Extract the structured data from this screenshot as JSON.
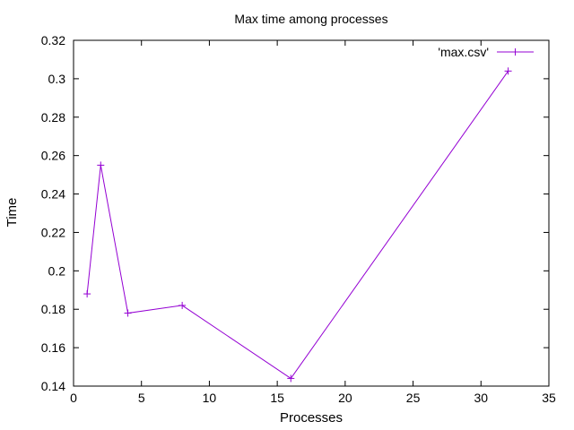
{
  "chart_data": {
    "type": "line",
    "title": "Max time among processes",
    "xlabel": "Processes",
    "ylabel": "Time",
    "xlim": [
      0,
      35
    ],
    "ylim": [
      0.14,
      0.32
    ],
    "xticks": [
      0,
      5,
      10,
      15,
      20,
      25,
      30,
      35
    ],
    "yticks": [
      0.14,
      0.16,
      0.18,
      0.2,
      0.22,
      0.24,
      0.26,
      0.28,
      0.3,
      0.32
    ],
    "ytick_labels": [
      "0.14",
      "0.16",
      "0.18",
      "0.2",
      "0.22",
      "0.24",
      "0.26",
      "0.28",
      "0.3",
      "0.32"
    ],
    "grid": false,
    "legend_position": "top-right",
    "series": [
      {
        "name": "'max.csv'",
        "color": "#9400d3",
        "marker": "plus",
        "x": [
          1,
          2,
          4,
          8,
          16,
          32
        ],
        "y": [
          0.188,
          0.255,
          0.178,
          0.182,
          0.144,
          0.304
        ]
      }
    ]
  }
}
